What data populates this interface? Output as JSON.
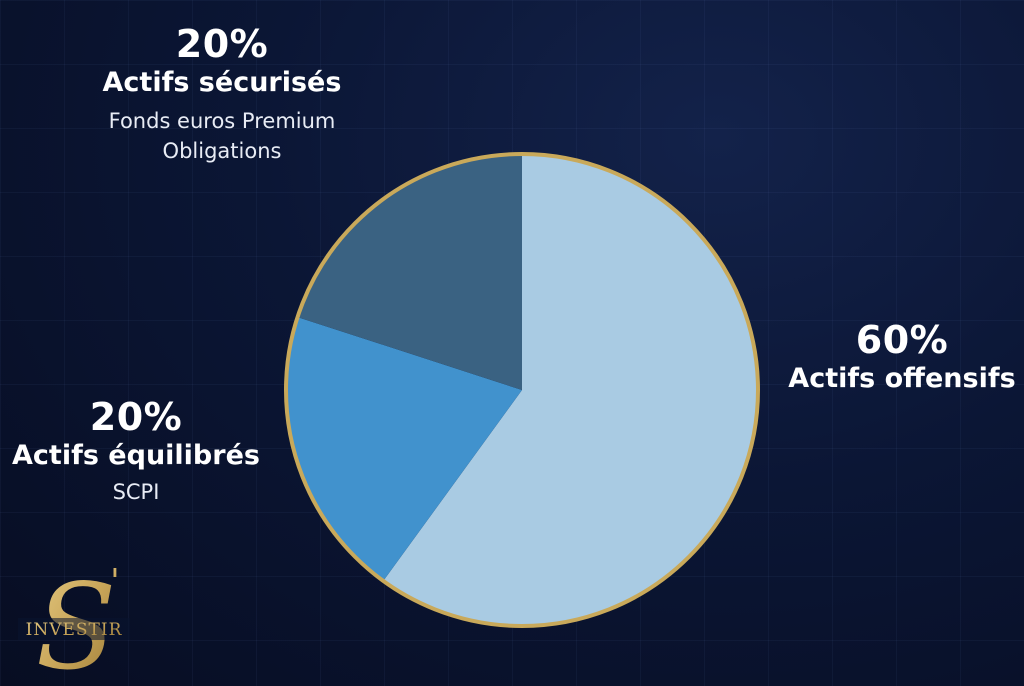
{
  "chart_data": {
    "type": "pie",
    "slices": [
      {
        "percent_label": "60%",
        "name": "Actifs offensifs",
        "value": 60,
        "details": [],
        "color": "#a9cbe3"
      },
      {
        "percent_label": "20%",
        "name": "Actifs équilibrés",
        "value": 20,
        "details": [
          "SCPI"
        ],
        "color": "#4192cd"
      },
      {
        "percent_label": "20%",
        "name": "Actifs sécurisés",
        "value": 20,
        "details": [
          "Fonds euros Premium",
          "Obligations"
        ],
        "color": "#3a6282"
      }
    ],
    "start_angle": "12 o'clock",
    "direction": "clockwise",
    "border_color": "#c9a95a"
  },
  "logo": {
    "text": "INVESTIR",
    "monogram": "S'",
    "color": "#c9a65a"
  }
}
